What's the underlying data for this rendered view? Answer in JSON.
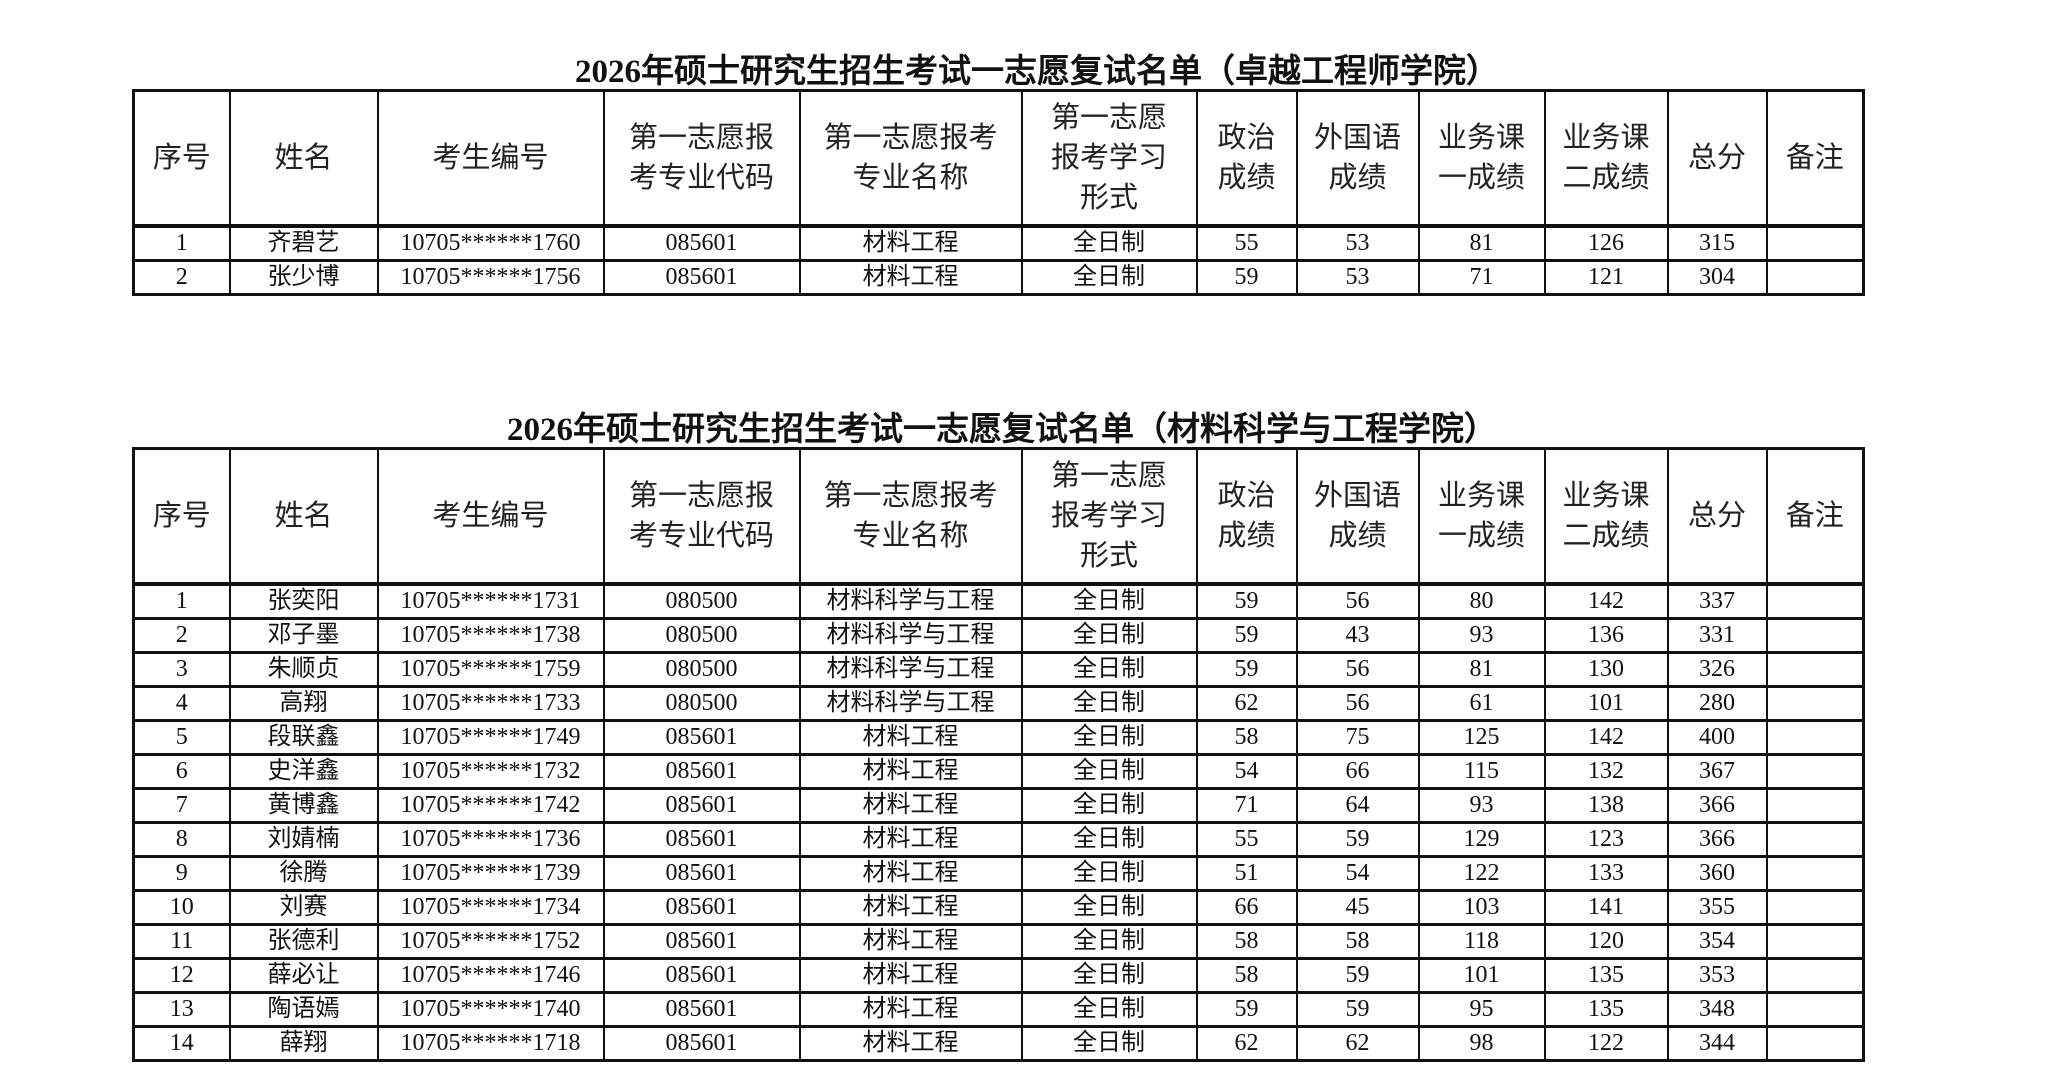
{
  "columns": [
    "序号",
    "姓名",
    "考生编号",
    "第一志愿报\n考专业代码",
    "第一志愿报考\n专业名称",
    "第一志愿\n报考学习\n形式",
    "政治\n成绩",
    "外国语\n成绩",
    "业务课\n一成绩",
    "业务课\n二成绩",
    "总分",
    "备注"
  ],
  "tables": [
    {
      "title": "2026年硕士研究生招生考试一志愿复试名单（卓越工程师学院）",
      "rows": [
        [
          "1",
          "齐碧艺",
          "10705******1760",
          "085601",
          "材料工程",
          "全日制",
          "55",
          "53",
          "81",
          "126",
          "315",
          ""
        ],
        [
          "2",
          "张少博",
          "10705******1756",
          "085601",
          "材料工程",
          "全日制",
          "59",
          "53",
          "71",
          "121",
          "304",
          ""
        ]
      ]
    },
    {
      "title": "2026年硕士研究生招生考试一志愿复试名单（材料科学与工程学院）",
      "rows": [
        [
          "1",
          "张奕阳",
          "10705******1731",
          "080500",
          "材料科学与工程",
          "全日制",
          "59",
          "56",
          "80",
          "142",
          "337",
          ""
        ],
        [
          "2",
          "邓子墨",
          "10705******1738",
          "080500",
          "材料科学与工程",
          "全日制",
          "59",
          "43",
          "93",
          "136",
          "331",
          ""
        ],
        [
          "3",
          "朱顺贞",
          "10705******1759",
          "080500",
          "材料科学与工程",
          "全日制",
          "59",
          "56",
          "81",
          "130",
          "326",
          ""
        ],
        [
          "4",
          "高翔",
          "10705******1733",
          "080500",
          "材料科学与工程",
          "全日制",
          "62",
          "56",
          "61",
          "101",
          "280",
          ""
        ],
        [
          "5",
          "段联鑫",
          "10705******1749",
          "085601",
          "材料工程",
          "全日制",
          "58",
          "75",
          "125",
          "142",
          "400",
          ""
        ],
        [
          "6",
          "史洋鑫",
          "10705******1732",
          "085601",
          "材料工程",
          "全日制",
          "54",
          "66",
          "115",
          "132",
          "367",
          ""
        ],
        [
          "7",
          "黄博鑫",
          "10705******1742",
          "085601",
          "材料工程",
          "全日制",
          "71",
          "64",
          "93",
          "138",
          "366",
          ""
        ],
        [
          "8",
          "刘婧楠",
          "10705******1736",
          "085601",
          "材料工程",
          "全日制",
          "55",
          "59",
          "129",
          "123",
          "366",
          ""
        ],
        [
          "9",
          "徐腾",
          "10705******1739",
          "085601",
          "材料工程",
          "全日制",
          "51",
          "54",
          "122",
          "133",
          "360",
          ""
        ],
        [
          "10",
          "刘赛",
          "10705******1734",
          "085601",
          "材料工程",
          "全日制",
          "66",
          "45",
          "103",
          "141",
          "355",
          ""
        ],
        [
          "11",
          "张德利",
          "10705******1752",
          "085601",
          "材料工程",
          "全日制",
          "58",
          "58",
          "118",
          "120",
          "354",
          ""
        ],
        [
          "12",
          "薛必让",
          "10705******1746",
          "085601",
          "材料工程",
          "全日制",
          "58",
          "59",
          "101",
          "135",
          "353",
          ""
        ],
        [
          "13",
          "陶语嫣",
          "10705******1740",
          "085601",
          "材料工程",
          "全日制",
          "59",
          "59",
          "95",
          "135",
          "348",
          ""
        ],
        [
          "14",
          "薛翔",
          "10705******1718",
          "085601",
          "材料工程",
          "全日制",
          "62",
          "62",
          "98",
          "122",
          "344",
          ""
        ]
      ]
    }
  ]
}
